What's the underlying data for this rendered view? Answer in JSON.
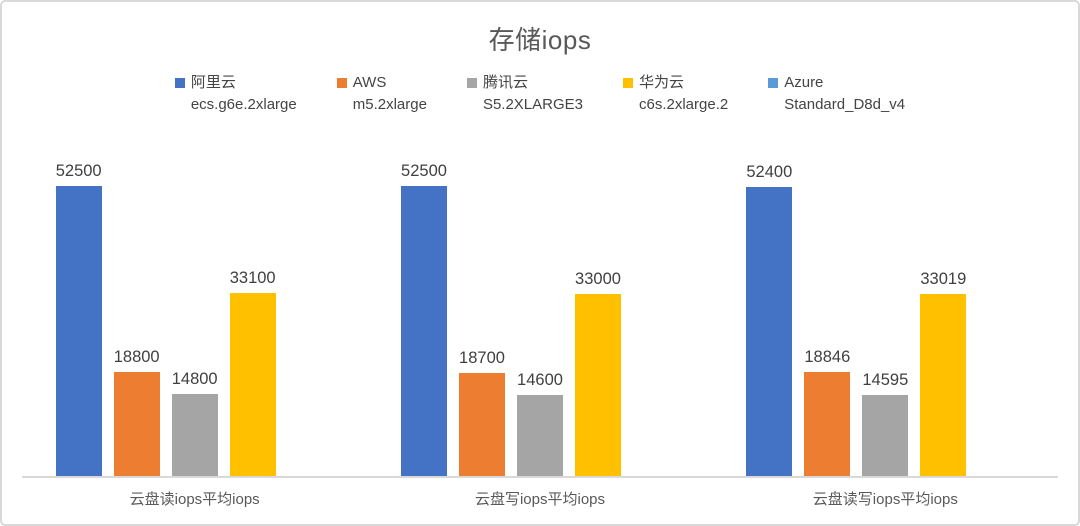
{
  "title": "存储iops",
  "colors": {
    "alicloud": "#4472C4",
    "aws": "#ED7D31",
    "tencent": "#A5A5A5",
    "huawei": "#FFC000",
    "azure": "#5B9BD5",
    "title_text": "#595959",
    "data_label_text": "#404040",
    "category_text": "#595959",
    "axis_line": "#D9D9D9",
    "frame_border": "#D9D9D9"
  },
  "legend": [
    {
      "key": "alicloud",
      "name": "阿里云",
      "instance": "ecs.g6e.2xlarge",
      "color": "#4472C4"
    },
    {
      "key": "aws",
      "name": "AWS",
      "instance": "m5.2xlarge",
      "color": "#ED7D31"
    },
    {
      "key": "tencent",
      "name": "腾讯云",
      "instance": "S5.2XLARGE3",
      "color": "#A5A5A5"
    },
    {
      "key": "huawei",
      "name": "华为云",
      "instance": "c6s.2xlarge.2",
      "color": "#FFC000"
    },
    {
      "key": "azure",
      "name": "Azure",
      "instance": "Standard_D8d_v4",
      "color": "#5B9BD5"
    }
  ],
  "chart_data": {
    "type": "bar",
    "title": "存储iops",
    "categories": [
      "云盘读iops平均iops",
      "云盘写iops平均iops",
      "云盘读写iops平均iops"
    ],
    "series": [
      {
        "key": "alicloud",
        "name": "阿里云 ecs.g6e.2xlarge",
        "color": "#4472C4",
        "values": [
          52500,
          52500,
          52400
        ]
      },
      {
        "key": "aws",
        "name": "AWS m5.2xlarge",
        "color": "#ED7D31",
        "values": [
          18800,
          18700,
          18846
        ]
      },
      {
        "key": "tencent",
        "name": "腾讯云 S5.2XLARGE3",
        "color": "#A5A5A5",
        "values": [
          14800,
          14600,
          14595
        ]
      },
      {
        "key": "huawei",
        "name": "华为云 c6s.2xlarge.2",
        "color": "#FFC000",
        "values": [
          33100,
          33000,
          33019
        ]
      },
      {
        "key": "azure",
        "name": "Azure Standard_D8d_v4",
        "color": "#5B9BD5",
        "values": [
          null,
          null,
          null
        ]
      }
    ],
    "data_labels": true,
    "gridlines": false,
    "y_axis_visible": false,
    "legend_position": "top"
  }
}
